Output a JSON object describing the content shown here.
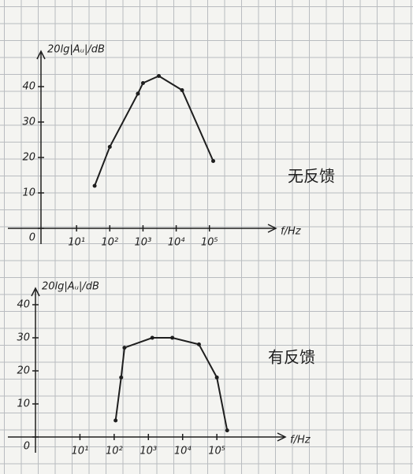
{
  "chart_data": [
    {
      "type": "line",
      "y_label": "20lg|Aᵤ|/dB",
      "x_label": "f/Hz",
      "annotation": "无反馈",
      "xscale": "log",
      "xlim": [
        1,
        10000000
      ],
      "ylim": [
        0,
        50
      ],
      "xticks": [
        {
          "value": 10,
          "label": "10¹"
        },
        {
          "value": 100,
          "label": "10²"
        },
        {
          "value": 1000,
          "label": "10³"
        },
        {
          "value": 10000,
          "label": "10⁴"
        },
        {
          "value": 100000,
          "label": "10⁵"
        }
      ],
      "yticks": [
        0,
        10,
        20,
        30,
        40
      ],
      "x": [
        35,
        100,
        700,
        1000,
        3000,
        15000,
        130000
      ],
      "series": [
        {
          "color": "#1e1e1e",
          "values": [
            12,
            23,
            38,
            41,
            43,
            39,
            19
          ]
        }
      ]
    },
    {
      "type": "line",
      "y_label": "20lg|Aᵤ|/dB",
      "x_label": "f/Hz",
      "annotation": "有反馈",
      "xscale": "log",
      "xlim": [
        1,
        10000000
      ],
      "ylim": [
        0,
        45
      ],
      "xticks": [
        {
          "value": 10,
          "label": "10¹"
        },
        {
          "value": 100,
          "label": "10²"
        },
        {
          "value": 1000,
          "label": "10³"
        },
        {
          "value": 10000,
          "label": "10⁴"
        },
        {
          "value": 100000,
          "label": "10⁵"
        }
      ],
      "yticks": [
        0,
        10,
        20,
        30,
        40
      ],
      "x": [
        110,
        160,
        200,
        1300,
        5000,
        30000,
        100000,
        200000
      ],
      "series": [
        {
          "color": "#1e1e1e",
          "values": [
            5,
            18,
            27,
            30,
            30,
            28,
            18,
            2
          ]
        }
      ]
    }
  ]
}
